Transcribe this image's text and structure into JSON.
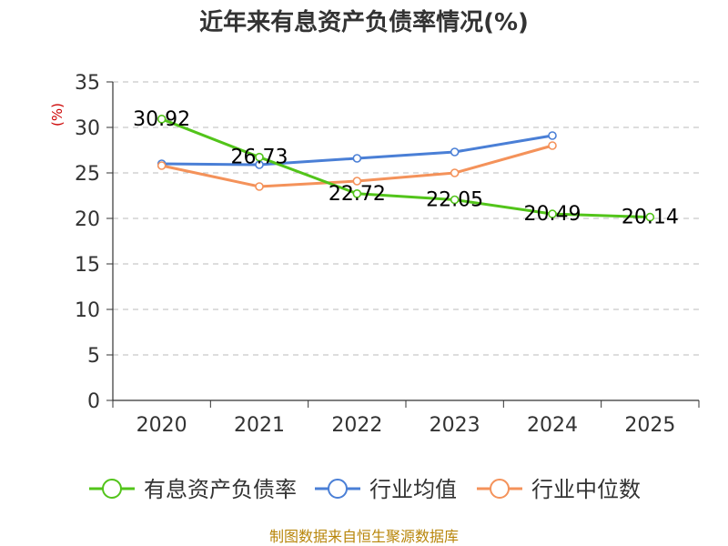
{
  "chart_data": {
    "type": "line",
    "title": "近年来有息资产负债率情况(%)",
    "ylabel": "(%)",
    "categories": [
      "2020",
      "2021",
      "2022",
      "2023",
      "2024",
      "2025"
    ],
    "ylim": [
      0,
      35
    ],
    "yticks": [
      0,
      5,
      10,
      15,
      20,
      25,
      30,
      35
    ],
    "grid": "horizontal-dashed",
    "legend_position": "bottom",
    "series": [
      {
        "name": "有息资产负债率",
        "color": "#52c41a",
        "values": [
          30.92,
          26.73,
          22.72,
          22.05,
          20.49,
          20.14
        ],
        "labels": [
          "30.92",
          "26.73",
          "22.72",
          "22.05",
          "20.49",
          "20.14"
        ]
      },
      {
        "name": "行业均值",
        "color": "#4a7fd6",
        "values": [
          26.0,
          25.9,
          26.6,
          27.3,
          29.1,
          null
        ]
      },
      {
        "name": "行业中位数",
        "color": "#f4925a",
        "values": [
          25.8,
          23.5,
          24.1,
          25.0,
          28.0,
          null
        ]
      }
    ]
  },
  "source": "制图数据来自恒生聚源数据库"
}
